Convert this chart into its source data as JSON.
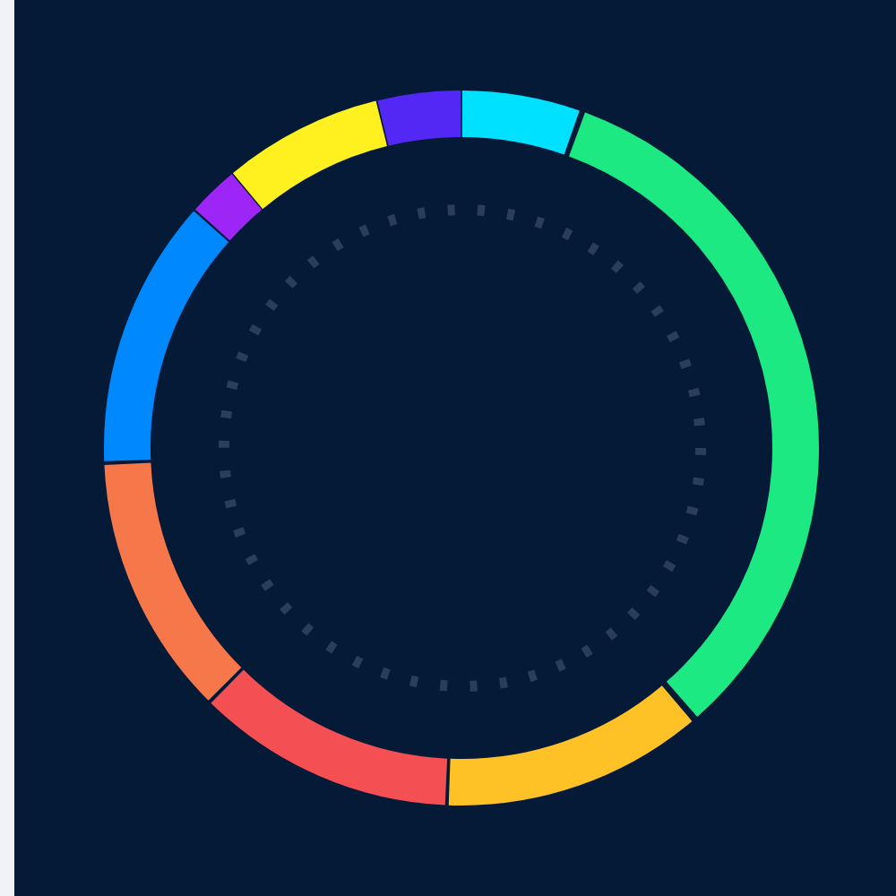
{
  "chart_data": {
    "type": "donut",
    "categories": [
      null,
      null,
      null,
      null,
      null,
      null,
      null,
      null,
      null
    ],
    "values": [
      5.4,
      33.4,
      11.9,
      11.8,
      11.9,
      12.3,
      2.3,
      7.3,
      3.8
    ],
    "colors": [
      "#00e0ff",
      "#1de983",
      "#ffc226",
      "#f44f53",
      "#f6774a",
      "#0088ff",
      "#9d26f6",
      "#fff01f",
      "#5328f5"
    ]
  }
}
